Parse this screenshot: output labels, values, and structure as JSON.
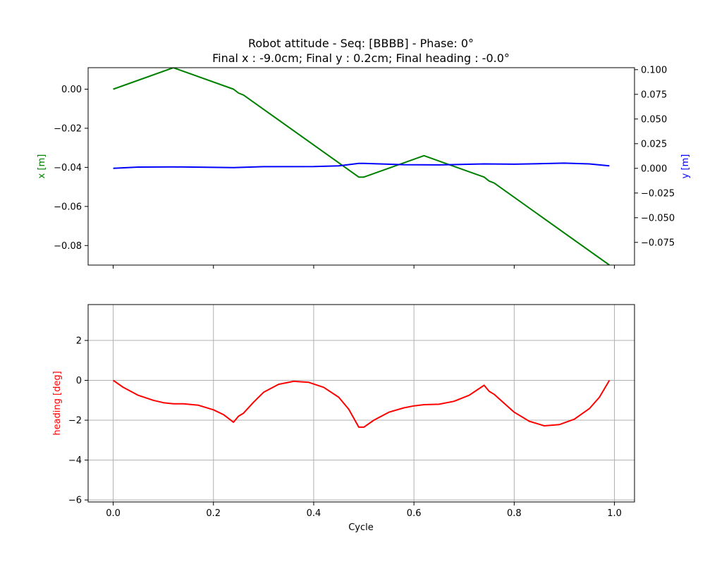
{
  "chart_data": [
    {
      "type": "line",
      "title": "Robot attitude - Seq: [BBBB] - Phase: 0°",
      "subtitle": "Final x : -9.0cm; Final y : 0.2cm; Final heading : -0.0°",
      "xlabel": "",
      "ylabel": "x [m]",
      "ylabel_right": "y [m]",
      "ylabel_color": "#008000",
      "ylabel_right_color": "#0000ff",
      "xlim": [
        -0.05,
        1.04
      ],
      "ylim": [
        -0.09,
        0.011
      ],
      "ylim_right": [
        -0.098,
        0.102
      ],
      "xticks": [
        0.0,
        0.2,
        0.4,
        0.6,
        0.8,
        1.0
      ],
      "xtick_labels_visible": false,
      "yticks": [
        "0.00",
        "-0.02",
        "-0.04",
        "-0.06",
        "-0.08"
      ],
      "yticks_right": [
        "0.100",
        "0.075",
        "0.050",
        "0.025",
        "0.000",
        "-0.025",
        "-0.050",
        "-0.075"
      ],
      "grid": false,
      "series": [
        {
          "axis": "left",
          "color": "#008000",
          "points": [
            [
              0.0,
              0.0
            ],
            [
              0.12,
              0.011
            ],
            [
              0.24,
              0.0
            ],
            [
              0.25,
              -0.002
            ],
            [
              0.26,
              -0.003
            ],
            [
              0.49,
              -0.045
            ],
            [
              0.5,
              -0.045
            ],
            [
              0.62,
              -0.034
            ],
            [
              0.74,
              -0.045
            ],
            [
              0.75,
              -0.047
            ],
            [
              0.76,
              -0.048
            ],
            [
              0.99,
              -0.09
            ]
          ]
        },
        {
          "axis": "right",
          "color": "#0000ff",
          "points": [
            [
              0.0,
              0.0
            ],
            [
              0.05,
              0.0013
            ],
            [
              0.12,
              0.0015
            ],
            [
              0.24,
              0.0007
            ],
            [
              0.3,
              0.0017
            ],
            [
              0.4,
              0.0018
            ],
            [
              0.45,
              0.0025
            ],
            [
              0.49,
              0.005
            ],
            [
              0.5,
              0.005
            ],
            [
              0.58,
              0.0037
            ],
            [
              0.65,
              0.0035
            ],
            [
              0.74,
              0.0045
            ],
            [
              0.8,
              0.0042
            ],
            [
              0.9,
              0.0053
            ],
            [
              0.95,
              0.0045
            ],
            [
              0.99,
              0.0025
            ]
          ]
        }
      ]
    },
    {
      "type": "line",
      "title": "",
      "xlabel": "Cycle",
      "ylabel": "heading [deg]",
      "ylabel_color": "#ff0000",
      "xlim": [
        -0.05,
        1.04
      ],
      "ylim": [
        -6.1,
        3.8
      ],
      "xticks": [
        0.0,
        0.2,
        0.4,
        0.6,
        0.8,
        1.0
      ],
      "xtick_labels": [
        "0.0",
        "0.2",
        "0.4",
        "0.6",
        "0.8",
        "1.0"
      ],
      "yticks": [
        2,
        0,
        -2,
        -4,
        -6
      ],
      "ytick_labels": [
        "2",
        "0",
        "−2",
        "−4",
        "−6"
      ],
      "grid": true,
      "series": [
        {
          "color": "#ff0000",
          "points": [
            [
              0.0,
              0.0
            ],
            [
              0.02,
              -0.35
            ],
            [
              0.05,
              -0.75
            ],
            [
              0.08,
              -1.0
            ],
            [
              0.1,
              -1.12
            ],
            [
              0.12,
              -1.18
            ],
            [
              0.14,
              -1.18
            ],
            [
              0.17,
              -1.25
            ],
            [
              0.2,
              -1.48
            ],
            [
              0.22,
              -1.72
            ],
            [
              0.24,
              -2.1
            ],
            [
              0.25,
              -1.8
            ],
            [
              0.26,
              -1.65
            ],
            [
              0.28,
              -1.1
            ],
            [
              0.3,
              -0.6
            ],
            [
              0.33,
              -0.2
            ],
            [
              0.36,
              -0.05
            ],
            [
              0.39,
              -0.1
            ],
            [
              0.42,
              -0.35
            ],
            [
              0.45,
              -0.85
            ],
            [
              0.47,
              -1.45
            ],
            [
              0.49,
              -2.35
            ],
            [
              0.5,
              -2.35
            ],
            [
              0.52,
              -2.0
            ],
            [
              0.55,
              -1.6
            ],
            [
              0.58,
              -1.38
            ],
            [
              0.6,
              -1.28
            ],
            [
              0.62,
              -1.22
            ],
            [
              0.65,
              -1.2
            ],
            [
              0.68,
              -1.05
            ],
            [
              0.71,
              -0.75
            ],
            [
              0.74,
              -0.25
            ],
            [
              0.75,
              -0.55
            ],
            [
              0.76,
              -0.7
            ],
            [
              0.78,
              -1.15
            ],
            [
              0.8,
              -1.6
            ],
            [
              0.83,
              -2.05
            ],
            [
              0.86,
              -2.28
            ],
            [
              0.89,
              -2.22
            ],
            [
              0.92,
              -1.95
            ],
            [
              0.95,
              -1.42
            ],
            [
              0.97,
              -0.85
            ],
            [
              0.99,
              0.0
            ]
          ]
        }
      ]
    }
  ]
}
